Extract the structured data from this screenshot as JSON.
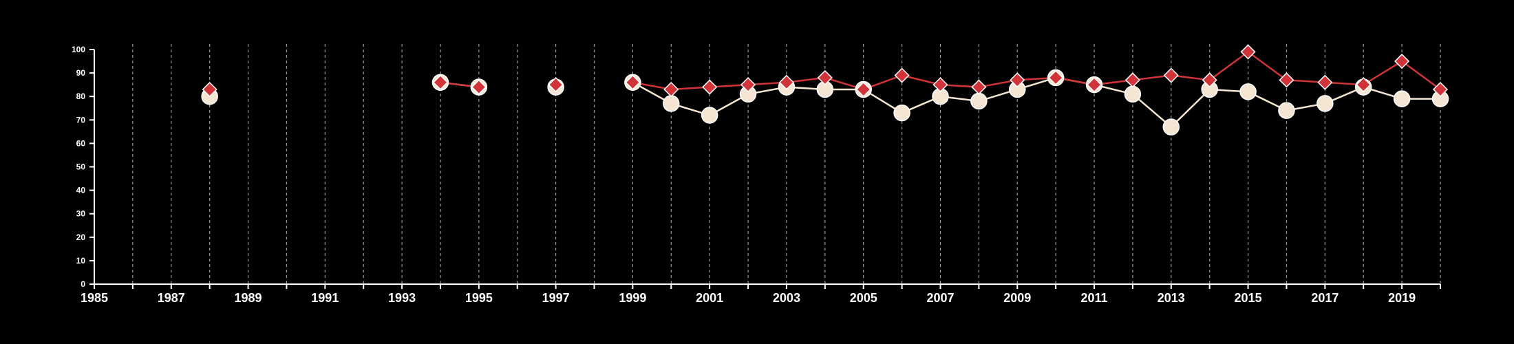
{
  "chart_data": {
    "type": "line",
    "title": "",
    "xlabel": "",
    "ylabel": "",
    "xlim": [
      1985,
      2020
    ],
    "ylim": [
      0,
      100
    ],
    "x_ticks": [
      1985,
      1987,
      1989,
      1991,
      1993,
      1995,
      1997,
      1999,
      2001,
      2003,
      2005,
      2007,
      2009,
      2011,
      2013,
      2015,
      2017,
      2019
    ],
    "y_ticks": [
      0,
      10,
      20,
      30,
      40,
      50,
      60,
      70,
      80,
      90,
      100
    ],
    "vertical_gridlines_every_year": true,
    "background": "#000000",
    "series": [
      {
        "marker": "circle",
        "color": "#f5e6d3",
        "points": [
          {
            "x": 1988,
            "y": 80
          },
          {
            "x": 1994,
            "y": 86
          },
          {
            "x": 1995,
            "y": 84
          },
          {
            "x": 1997,
            "y": 84
          },
          {
            "x": 1999,
            "y": 86
          },
          {
            "x": 2000,
            "y": 77
          },
          {
            "x": 2001,
            "y": 72
          },
          {
            "x": 2002,
            "y": 81
          },
          {
            "x": 2003,
            "y": 84
          },
          {
            "x": 2004,
            "y": 83
          },
          {
            "x": 2005,
            "y": 83
          },
          {
            "x": 2006,
            "y": 73
          },
          {
            "x": 2007,
            "y": 80
          },
          {
            "x": 2008,
            "y": 78
          },
          {
            "x": 2009,
            "y": 83
          },
          {
            "x": 2010,
            "y": 88
          },
          {
            "x": 2011,
            "y": 85
          },
          {
            "x": 2012,
            "y": 81
          },
          {
            "x": 2013,
            "y": 67
          },
          {
            "x": 2014,
            "y": 83
          },
          {
            "x": 2015,
            "y": 82
          },
          {
            "x": 2016,
            "y": 74
          },
          {
            "x": 2017,
            "y": 77
          },
          {
            "x": 2018,
            "y": 84
          },
          {
            "x": 2019,
            "y": 79
          },
          {
            "x": 2020,
            "y": 79
          }
        ]
      },
      {
        "marker": "diamond",
        "color": "#d13438",
        "points": [
          {
            "x": 1988,
            "y": 83
          },
          {
            "x": 1994,
            "y": 86
          },
          {
            "x": 1995,
            "y": 84
          },
          {
            "x": 1997,
            "y": 85
          },
          {
            "x": 1999,
            "y": 86
          },
          {
            "x": 2000,
            "y": 83
          },
          {
            "x": 2001,
            "y": 84
          },
          {
            "x": 2002,
            "y": 85
          },
          {
            "x": 2003,
            "y": 86
          },
          {
            "x": 2004,
            "y": 88
          },
          {
            "x": 2005,
            "y": 83
          },
          {
            "x": 2006,
            "y": 89
          },
          {
            "x": 2007,
            "y": 85
          },
          {
            "x": 2008,
            "y": 84
          },
          {
            "x": 2009,
            "y": 87
          },
          {
            "x": 2010,
            "y": 88
          },
          {
            "x": 2011,
            "y": 85
          },
          {
            "x": 2012,
            "y": 87
          },
          {
            "x": 2013,
            "y": 89
          },
          {
            "x": 2014,
            "y": 87
          },
          {
            "x": 2015,
            "y": 99
          },
          {
            "x": 2016,
            "y": 87
          },
          {
            "x": 2017,
            "y": 86
          },
          {
            "x": 2018,
            "y": 85
          },
          {
            "x": 2019,
            "y": 95
          },
          {
            "x": 2020,
            "y": 83
          }
        ]
      }
    ]
  }
}
